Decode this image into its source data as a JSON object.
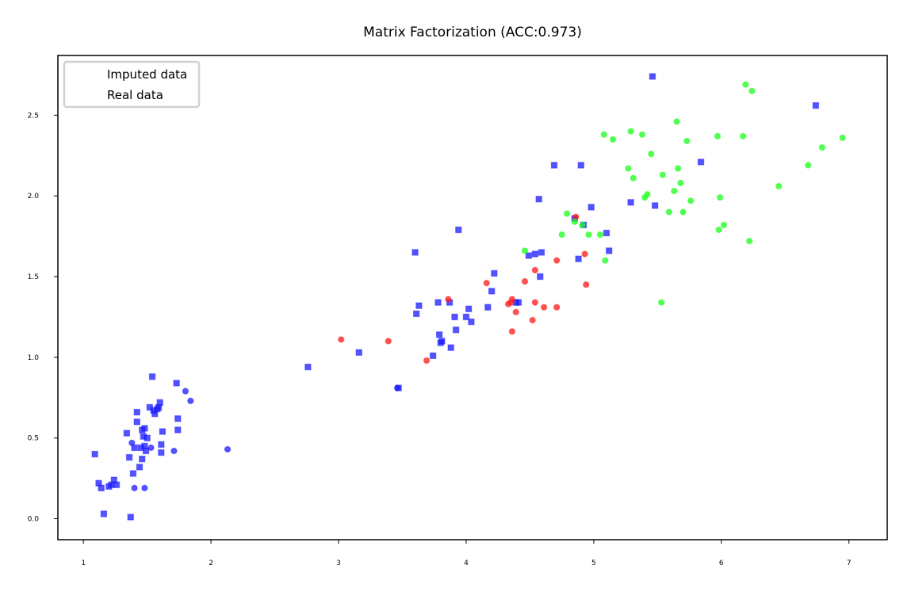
{
  "chart_data": {
    "type": "scatter",
    "title": "Matrix Factorization (ACC:0.973)",
    "xlabel": "",
    "ylabel": "",
    "xlim": [
      0.8,
      7.3
    ],
    "ylim": [
      -0.13,
      2.87
    ],
    "xticks": [
      1,
      2,
      3,
      4,
      5,
      6,
      7
    ],
    "yticks": [
      0.0,
      0.5,
      1.0,
      1.5,
      2.0,
      2.5
    ],
    "grid": false,
    "legend": {
      "placement": "top-left",
      "entries": [
        "Imputed data",
        "Real data"
      ]
    },
    "series": [
      {
        "color": "#1a1aff",
        "marker": "square",
        "points": [
          [
            1.09,
            0.4
          ],
          [
            1.12,
            0.22
          ],
          [
            1.14,
            0.19
          ],
          [
            1.16,
            0.03
          ],
          [
            1.2,
            0.2
          ],
          [
            1.22,
            0.21
          ],
          [
            1.24,
            0.24
          ],
          [
            1.26,
            0.21
          ],
          [
            1.34,
            0.53
          ],
          [
            1.36,
            0.38
          ],
          [
            1.37,
            0.01
          ],
          [
            1.39,
            0.28
          ],
          [
            1.4,
            0.44
          ],
          [
            1.42,
            0.66
          ],
          [
            1.42,
            0.6
          ],
          [
            1.44,
            0.32
          ],
          [
            1.45,
            0.44
          ],
          [
            1.46,
            0.55
          ],
          [
            1.46,
            0.37
          ],
          [
            1.47,
            0.51
          ],
          [
            1.48,
            0.56
          ],
          [
            1.48,
            0.45
          ],
          [
            1.49,
            0.42
          ],
          [
            1.5,
            0.5
          ],
          [
            1.52,
            0.69
          ],
          [
            1.54,
            0.88
          ],
          [
            1.55,
            0.67
          ],
          [
            1.56,
            0.65
          ],
          [
            1.58,
            0.68
          ],
          [
            1.59,
            0.69
          ],
          [
            1.6,
            0.72
          ],
          [
            1.61,
            0.41
          ],
          [
            1.61,
            0.46
          ],
          [
            1.62,
            0.54
          ],
          [
            1.74,
            0.62
          ],
          [
            1.74,
            0.55
          ],
          [
            1.73,
            0.84
          ],
          [
            2.76,
            0.94
          ],
          [
            3.16,
            1.03
          ],
          [
            3.47,
            0.81
          ],
          [
            3.6,
            1.65
          ],
          [
            3.61,
            1.27
          ],
          [
            3.63,
            1.32
          ],
          [
            3.74,
            1.01
          ],
          [
            3.78,
            1.34
          ],
          [
            3.79,
            1.14
          ],
          [
            3.8,
            1.09
          ],
          [
            3.81,
            1.1
          ],
          [
            3.87,
            1.34
          ],
          [
            3.88,
            1.06
          ],
          [
            3.91,
            1.25
          ],
          [
            3.92,
            1.17
          ],
          [
            3.94,
            1.79
          ],
          [
            4.0,
            1.25
          ],
          [
            4.02,
            1.3
          ],
          [
            4.04,
            1.22
          ],
          [
            4.17,
            1.31
          ],
          [
            4.2,
            1.41
          ],
          [
            4.22,
            1.52
          ],
          [
            4.39,
            1.34
          ],
          [
            4.41,
            1.34
          ],
          [
            4.49,
            1.63
          ],
          [
            4.54,
            1.64
          ],
          [
            4.57,
            1.98
          ],
          [
            4.58,
            1.5
          ],
          [
            4.59,
            1.65
          ],
          [
            4.69,
            2.19
          ],
          [
            4.85,
            1.86
          ],
          [
            4.88,
            1.61
          ],
          [
            4.9,
            2.19
          ],
          [
            4.92,
            1.82
          ],
          [
            4.98,
            1.93
          ],
          [
            5.1,
            1.77
          ],
          [
            5.12,
            1.66
          ],
          [
            5.29,
            1.96
          ],
          [
            5.46,
            2.74
          ],
          [
            5.48,
            1.94
          ],
          [
            5.84,
            2.21
          ],
          [
            6.74,
            2.56
          ]
        ]
      },
      {
        "color": "#1a1aff",
        "marker": "circle",
        "points": [
          [
            1.38,
            0.47
          ],
          [
            1.4,
            0.19
          ],
          [
            1.48,
            0.19
          ],
          [
            1.53,
            0.44
          ],
          [
            1.71,
            0.42
          ],
          [
            1.8,
            0.79
          ],
          [
            1.84,
            0.73
          ],
          [
            2.13,
            0.43
          ],
          [
            3.46,
            0.81
          ]
        ]
      },
      {
        "color": "#ff1a1a",
        "marker": "circle",
        "points": [
          [
            3.02,
            1.11
          ],
          [
            3.39,
            1.1
          ],
          [
            3.69,
            0.98
          ],
          [
            3.86,
            1.36
          ],
          [
            4.16,
            1.46
          ],
          [
            4.33,
            1.33
          ],
          [
            4.35,
            1.34
          ],
          [
            4.36,
            1.36
          ],
          [
            4.36,
            1.16
          ],
          [
            4.39,
            1.28
          ],
          [
            4.46,
            1.47
          ],
          [
            4.52,
            1.23
          ],
          [
            4.54,
            1.34
          ],
          [
            4.54,
            1.54
          ],
          [
            4.61,
            1.31
          ],
          [
            4.71,
            1.31
          ],
          [
            4.71,
            1.6
          ],
          [
            4.86,
            1.87
          ],
          [
            4.93,
            1.64
          ],
          [
            4.94,
            1.45
          ]
        ]
      },
      {
        "color": "#1aff1a",
        "marker": "circle",
        "points": [
          [
            4.46,
            1.66
          ],
          [
            4.75,
            1.76
          ],
          [
            4.79,
            1.89
          ],
          [
            4.85,
            1.84
          ],
          [
            4.91,
            1.82
          ],
          [
            4.96,
            1.76
          ],
          [
            5.05,
            1.76
          ],
          [
            5.08,
            2.38
          ],
          [
            5.09,
            1.6
          ],
          [
            5.15,
            2.35
          ],
          [
            5.27,
            2.17
          ],
          [
            5.29,
            2.4
          ],
          [
            5.31,
            2.11
          ],
          [
            5.38,
            2.38
          ],
          [
            5.4,
            1.99
          ],
          [
            5.42,
            2.01
          ],
          [
            5.45,
            2.26
          ],
          [
            5.53,
            1.34
          ],
          [
            5.54,
            2.13
          ],
          [
            5.59,
            1.9
          ],
          [
            5.63,
            2.03
          ],
          [
            5.65,
            2.46
          ],
          [
            5.66,
            2.17
          ],
          [
            5.68,
            2.08
          ],
          [
            5.7,
            1.9
          ],
          [
            5.73,
            2.34
          ],
          [
            5.76,
            1.97
          ],
          [
            5.97,
            2.37
          ],
          [
            5.98,
            1.79
          ],
          [
            5.99,
            1.99
          ],
          [
            6.02,
            1.82
          ],
          [
            6.17,
            2.37
          ],
          [
            6.19,
            2.69
          ],
          [
            6.22,
            1.72
          ],
          [
            6.24,
            2.65
          ],
          [
            6.45,
            2.06
          ],
          [
            6.68,
            2.19
          ],
          [
            6.79,
            2.3
          ],
          [
            6.95,
            2.36
          ]
        ]
      }
    ]
  }
}
